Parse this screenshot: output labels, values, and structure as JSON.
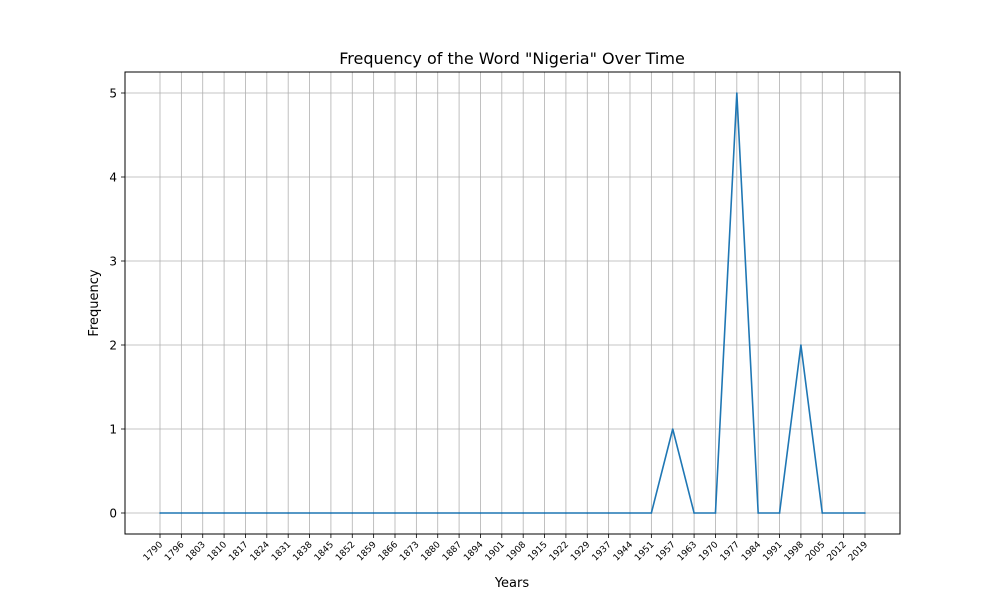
{
  "chart_data": {
    "type": "line",
    "title": "Frequency of the Word \"Nigeria\" Over Time",
    "xlabel": "Years",
    "ylabel": "Frequency",
    "x": [
      "1790",
      "1796",
      "1803",
      "1810",
      "1817",
      "1824",
      "1831",
      "1838",
      "1845",
      "1852",
      "1859",
      "1866",
      "1873",
      "1880",
      "1887",
      "1894",
      "1901",
      "1908",
      "1915",
      "1922",
      "1929",
      "1937",
      "1944",
      "1951",
      "1957",
      "1963",
      "1970",
      "1977",
      "1984",
      "1991",
      "1998",
      "2005",
      "2012",
      "2019"
    ],
    "series": [
      {
        "values": [
          0,
          0,
          0,
          0,
          0,
          0,
          0,
          0,
          0,
          0,
          0,
          0,
          0,
          0,
          0,
          0,
          0,
          0,
          0,
          0,
          0,
          0,
          0,
          0,
          1,
          0,
          0,
          5,
          0,
          0,
          2,
          0,
          0,
          0
        ]
      }
    ],
    "yticks": [
      "0",
      "1",
      "2",
      "3",
      "4",
      "5"
    ],
    "ylim": [
      -0.25,
      5.25
    ],
    "grid": true,
    "line_color": "#1f77b4",
    "grid_color": "#b0b0b0"
  }
}
